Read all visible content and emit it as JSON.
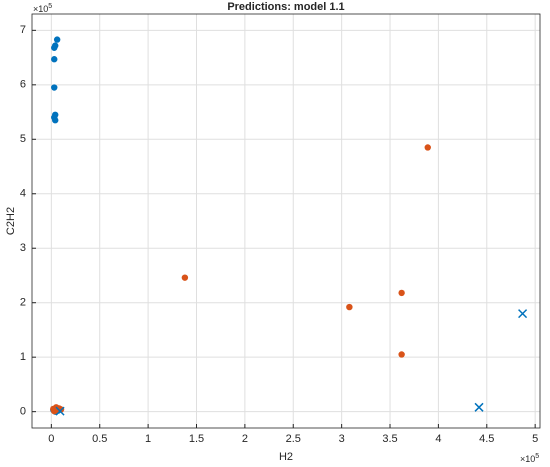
{
  "chart_data": {
    "type": "scatter",
    "title": "Predictions: model 1.1",
    "x_label": "H2",
    "y_label": "C2H2",
    "x_multiplier": {
      "base": "×10",
      "exponent": "5"
    },
    "y_multiplier": {
      "base": "×10",
      "exponent": "5"
    },
    "xlim": [
      -0.2,
      5.05
    ],
    "ylim": [
      -0.3,
      7.3
    ],
    "xticks": [
      0,
      0.5,
      1,
      1.5,
      2,
      2.5,
      3,
      3.5,
      4,
      4.5,
      5
    ],
    "yticks": [
      0,
      1,
      2,
      3,
      4,
      5,
      6,
      7
    ],
    "grid": true,
    "series": [
      {
        "color": "#0072bd",
        "marker": "dot",
        "x": [
          0.06,
          0.04,
          0.03,
          0.03,
          0.03,
          0.04,
          0.03,
          0.04,
          0.02,
          0.05,
          0.07,
          0.04
        ],
        "y": [
          6.83,
          6.72,
          6.68,
          6.47,
          5.95,
          5.45,
          5.4,
          5.35,
          0.03,
          0.06,
          0.02,
          0.0
        ]
      },
      {
        "color": "#d95319",
        "marker": "dot",
        "x": [
          1.38,
          3.08,
          3.62,
          3.62,
          3.89,
          0.02,
          0.05,
          0.08,
          0.03,
          0.1,
          0.06
        ],
        "y": [
          2.46,
          1.92,
          2.18,
          1.05,
          4.85,
          0.05,
          0.08,
          0.06,
          0.01,
          0.04,
          0.02
        ]
      },
      {
        "color": "#0072bd",
        "marker": "x",
        "x": [
          4.42,
          4.87,
          0.09
        ],
        "y": [
          0.08,
          1.8,
          0.01
        ]
      }
    ]
  }
}
